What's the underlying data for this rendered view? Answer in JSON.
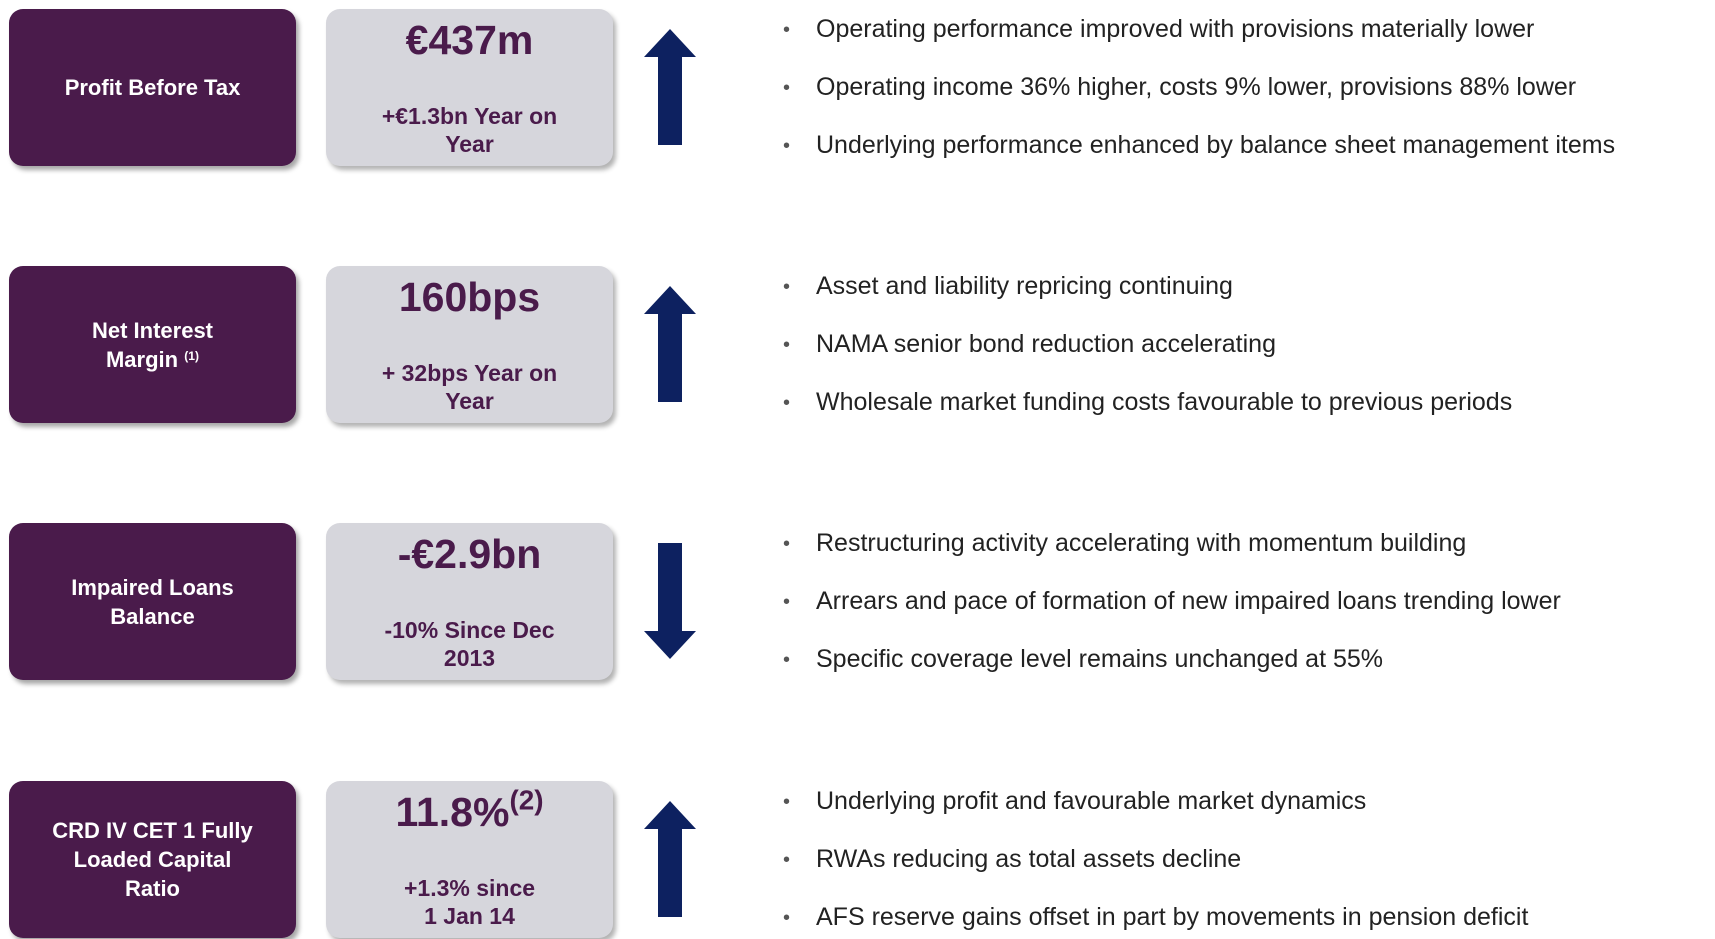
{
  "rows": [
    {
      "label": [
        "Profit Before Tax"
      ],
      "value": "€437m",
      "change": [
        "+€1.3bn Year on",
        "Year"
      ],
      "direction": "up",
      "bullets": [
        "Operating performance improved with provisions materially lower",
        "Operating income 36% higher, costs 9% lower, provisions 88% lower",
        "Underlying performance enhanced by balance sheet management items"
      ]
    },
    {
      "label": [
        "Net Interest",
        "Margin"
      ],
      "label_note": "(1)",
      "value": "160bps",
      "change": [
        "+ 32bps Year on",
        "Year"
      ],
      "direction": "up",
      "bullets": [
        "Asset and liability repricing continuing",
        "NAMA senior bond reduction accelerating",
        "Wholesale market funding costs favourable to previous periods"
      ]
    },
    {
      "label": [
        "Impaired Loans",
        "Balance"
      ],
      "value": "-€2.9bn",
      "change": [
        "-10% Since Dec",
        "2013"
      ],
      "direction": "down",
      "bullets": [
        "Restructuring activity accelerating with momentum building",
        "Arrears and pace of formation of new impaired loans trending lower",
        "Specific coverage level remains unchanged at 55%"
      ]
    },
    {
      "label": [
        "CRD IV CET 1 Fully",
        "Loaded Capital",
        "Ratio"
      ],
      "value": "11.8%",
      "value_note": "(2)",
      "change": [
        "+1.3% since",
        "1 Jan 14"
      ],
      "direction": "up",
      "bullets": [
        "Underlying profit and favourable market dynamics",
        "RWAs reducing as total assets decline",
        "AFS reserve gains offset in part by movements in pension deficit"
      ]
    }
  ]
}
